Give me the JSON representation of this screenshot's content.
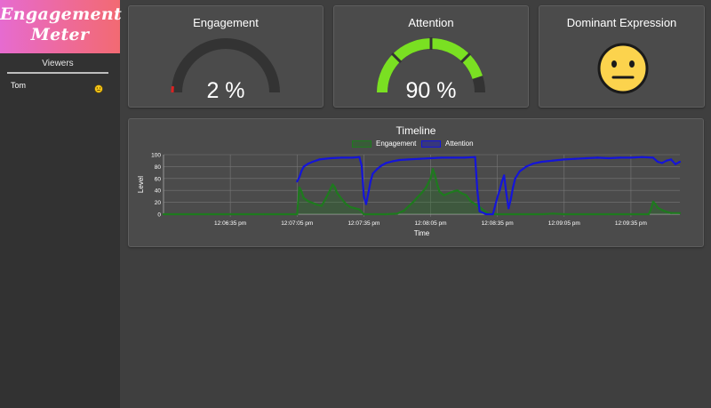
{
  "app": {
    "logo_text": "Engagement\nMeter"
  },
  "sidebar": {
    "viewers_title": "Viewers",
    "viewers": [
      {
        "name": "Tom",
        "expression_icon": "neutral-face-icon"
      }
    ]
  },
  "engagement_card": {
    "title": "Engagement",
    "value_text": "2 %",
    "value": 2,
    "fill_color": "#dd2222",
    "track_color": "#333333"
  },
  "attention_card": {
    "title": "Attention",
    "value_text": "90 %",
    "value": 90,
    "fill_color": "#7ae022",
    "track_color": "#333333"
  },
  "expression_card": {
    "title": "Dominant Expression",
    "expression_icon": "neutral-face-icon",
    "face_color": "#fcd34d"
  },
  "timeline": {
    "title": "Timeline",
    "chart_data": {
      "type": "line",
      "title": "Timeline",
      "xlabel": "Time",
      "ylabel": "Level",
      "ylim": [
        0,
        100
      ],
      "y_ticks": [
        0,
        20,
        40,
        60,
        80,
        100
      ],
      "x_tick_labels": [
        "12:06:35 pm",
        "12:07:05 pm",
        "12:07:35 pm",
        "12:08:05 pm",
        "12:08:35 pm",
        "12:09:05 pm",
        "12:09:35 pm"
      ],
      "x_domain_seconds": [
        0,
        232
      ],
      "x_tick_seconds": [
        30,
        60,
        90,
        120,
        150,
        180,
        210
      ],
      "grid": true,
      "legend_position": "top-center",
      "series": [
        {
          "name": "Engagement",
          "color": "#1e7a1e",
          "points": [
            [
              0,
              0
            ],
            [
              20,
              0
            ],
            [
              40,
              0
            ],
            [
              45,
              0
            ],
            [
              60,
              0
            ],
            [
              61,
              45
            ],
            [
              62,
              38
            ],
            [
              63,
              27
            ],
            [
              65,
              22
            ],
            [
              67,
              19
            ],
            [
              69,
              16
            ],
            [
              71,
              14
            ],
            [
              73,
              27
            ],
            [
              75,
              42
            ],
            [
              76,
              50
            ],
            [
              77,
              45
            ],
            [
              78,
              36
            ],
            [
              80,
              26
            ],
            [
              82,
              17
            ],
            [
              84,
              12
            ],
            [
              86,
              10
            ],
            [
              88,
              8
            ],
            [
              90,
              0
            ],
            [
              95,
              0
            ],
            [
              100,
              0
            ],
            [
              105,
              1
            ],
            [
              108,
              6
            ],
            [
              110,
              13
            ],
            [
              112,
              20
            ],
            [
              114,
              28
            ],
            [
              116,
              36
            ],
            [
              118,
              45
            ],
            [
              120,
              60
            ],
            [
              121,
              76
            ],
            [
              122,
              65
            ],
            [
              123,
              50
            ],
            [
              124,
              38
            ],
            [
              126,
              32
            ],
            [
              128,
              35
            ],
            [
              130,
              38
            ],
            [
              132,
              40
            ],
            [
              134,
              35
            ],
            [
              136,
              32
            ],
            [
              138,
              22
            ],
            [
              140,
              17
            ],
            [
              142,
              12
            ],
            [
              144,
              6
            ],
            [
              146,
              1
            ],
            [
              150,
              0
            ],
            [
              160,
              0
            ],
            [
              170,
              0
            ],
            [
              175,
              1
            ],
            [
              180,
              0
            ],
            [
              200,
              0
            ],
            [
              210,
              0
            ],
            [
              218,
              0
            ],
            [
              219,
              8
            ],
            [
              220,
              21
            ],
            [
              221,
              17
            ],
            [
              222,
              11
            ],
            [
              224,
              7
            ],
            [
              226,
              4
            ],
            [
              228,
              2
            ],
            [
              232,
              2
            ]
          ]
        },
        {
          "name": "Attention",
          "color": "#1515d8",
          "points": [
            [
              60,
              55
            ],
            [
              61,
              62
            ],
            [
              62,
              73
            ],
            [
              63,
              80
            ],
            [
              65,
              85
            ],
            [
              67,
              88
            ],
            [
              70,
              92
            ],
            [
              75,
              94
            ],
            [
              80,
              95
            ],
            [
              85,
              95
            ],
            [
              88,
              96
            ],
            [
              89,
              82
            ],
            [
              90,
              30
            ],
            [
              91,
              17
            ],
            [
              92,
              35
            ],
            [
              93,
              55
            ],
            [
              94,
              68
            ],
            [
              96,
              76
            ],
            [
              98,
              82
            ],
            [
              100,
              86
            ],
            [
              103,
              89
            ],
            [
              106,
              91
            ],
            [
              110,
              92
            ],
            [
              115,
              93
            ],
            [
              120,
              94
            ],
            [
              125,
              95
            ],
            [
              130,
              95
            ],
            [
              135,
              95
            ],
            [
              140,
              96
            ],
            [
              141,
              40
            ],
            [
              142,
              5
            ],
            [
              145,
              0
            ],
            [
              148,
              0
            ],
            [
              150,
              28
            ],
            [
              151,
              40
            ],
            [
              152,
              55
            ],
            [
              153,
              65
            ],
            [
              154,
              35
            ],
            [
              155,
              10
            ],
            [
              156,
              25
            ],
            [
              157,
              45
            ],
            [
              158,
              60
            ],
            [
              160,
              72
            ],
            [
              163,
              80
            ],
            [
              166,
              85
            ],
            [
              170,
              88
            ],
            [
              175,
              90
            ],
            [
              180,
              92
            ],
            [
              185,
              93
            ],
            [
              190,
              94
            ],
            [
              195,
              95
            ],
            [
              200,
              94
            ],
            [
              205,
              95
            ],
            [
              210,
              95
            ],
            [
              215,
              96
            ],
            [
              220,
              95
            ],
            [
              222,
              88
            ],
            [
              224,
              86
            ],
            [
              226,
              90
            ],
            [
              228,
              92
            ],
            [
              230,
              84
            ],
            [
              232,
              88
            ]
          ]
        }
      ]
    }
  }
}
